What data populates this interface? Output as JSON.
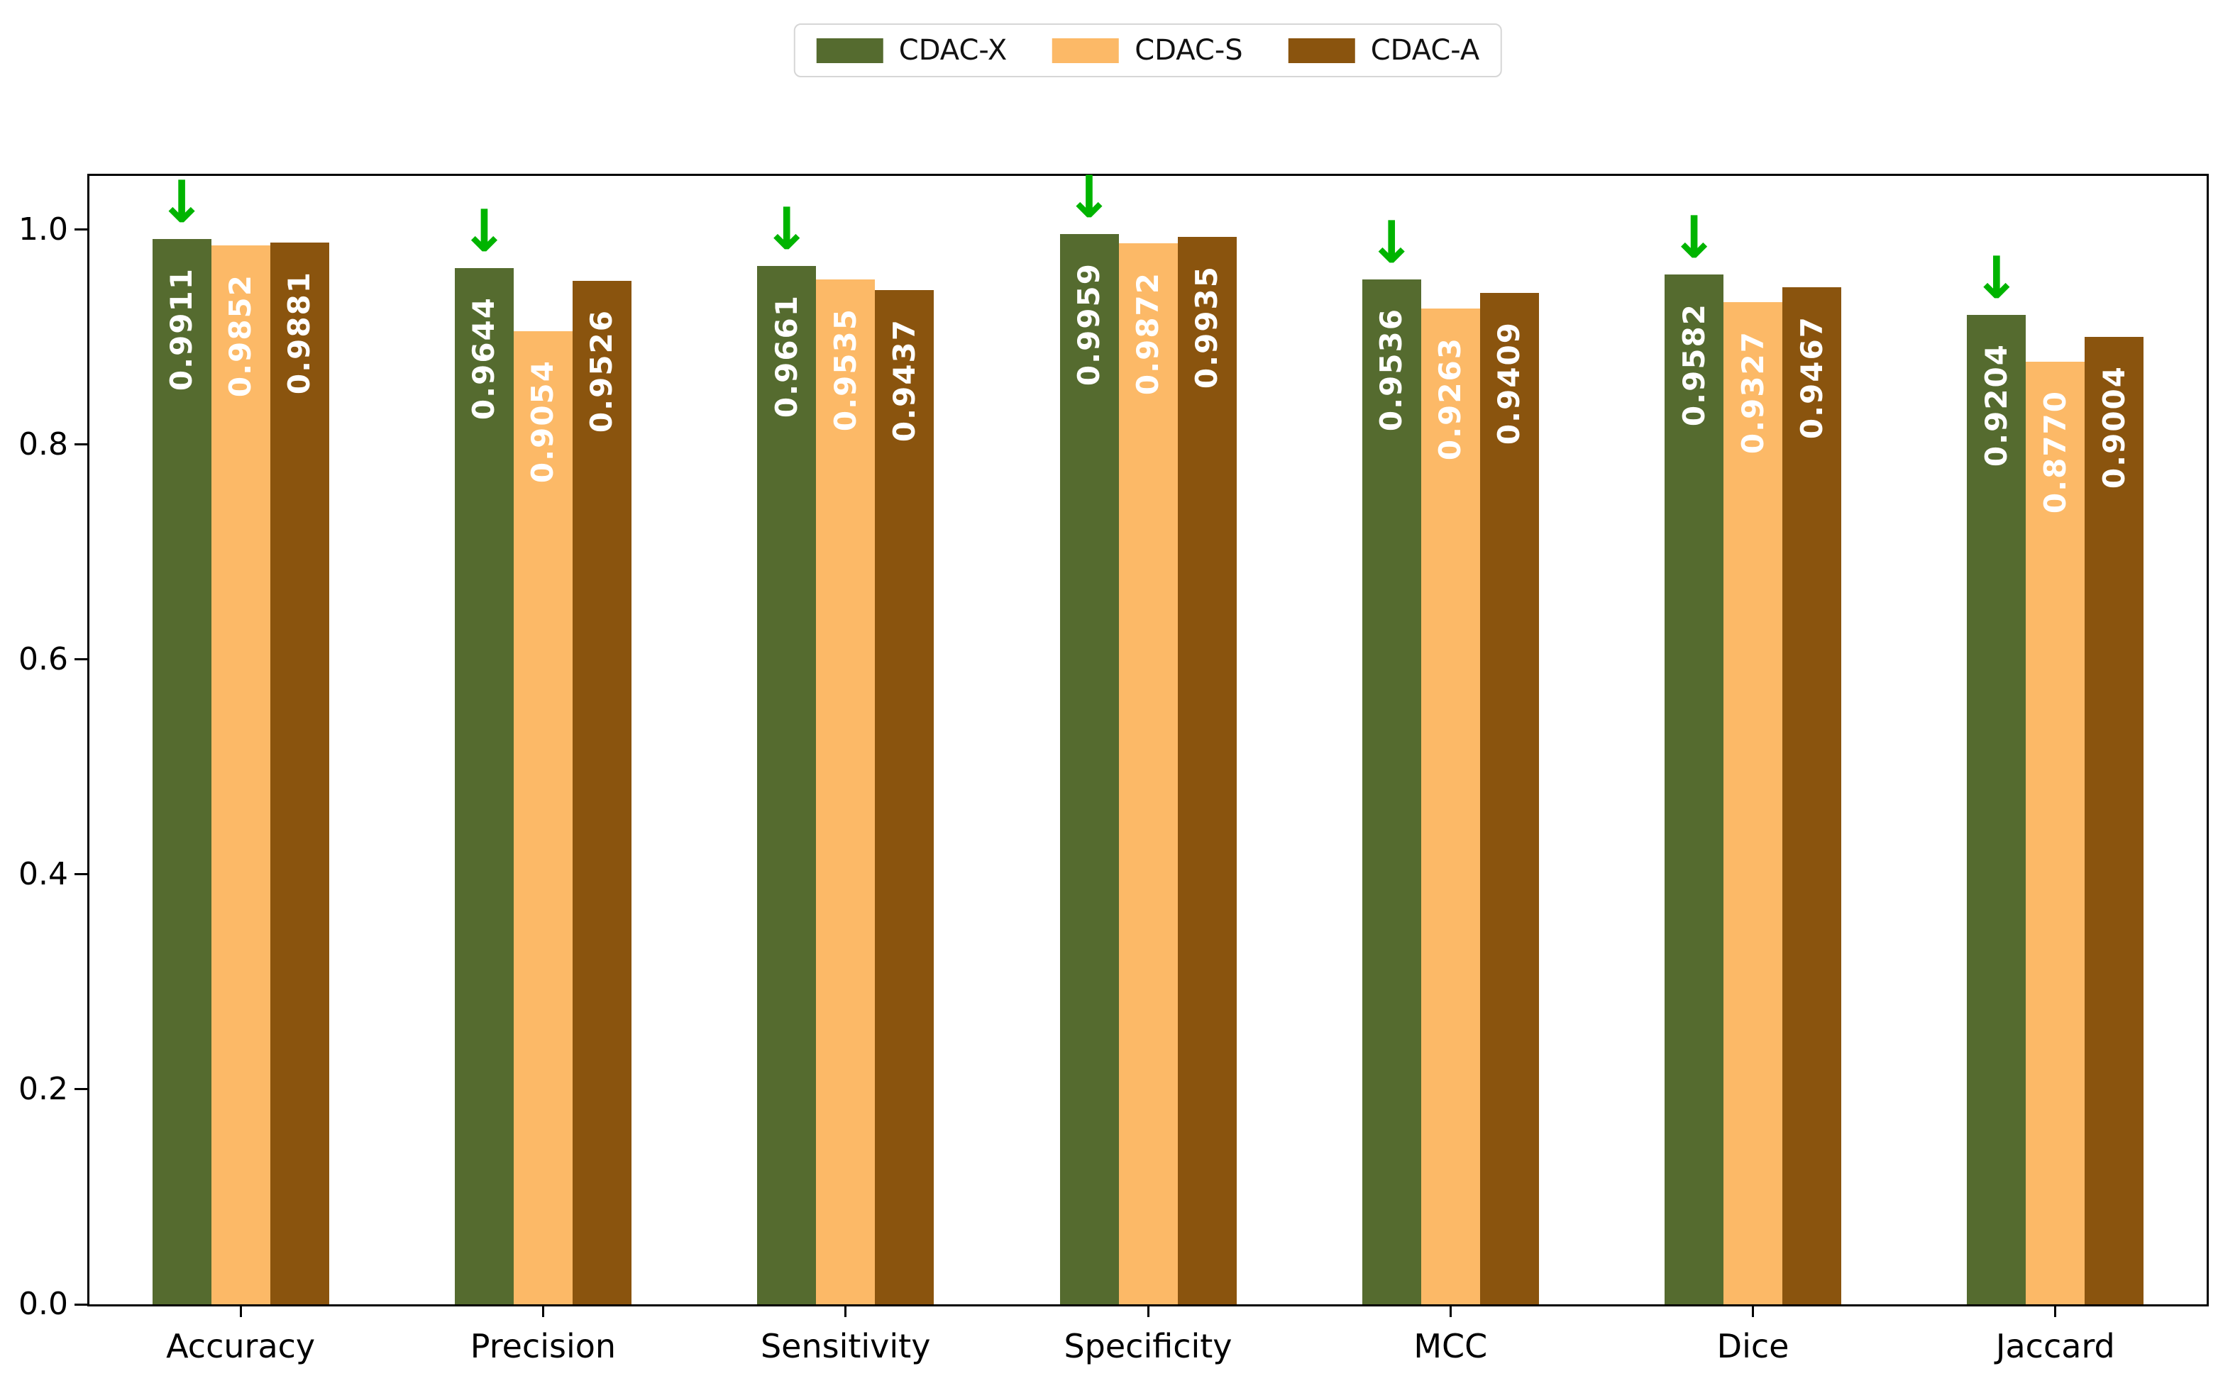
{
  "chart_data": {
    "type": "bar",
    "title": "",
    "xlabel": "",
    "ylabel": "",
    "categories": [
      "Accuracy",
      "Precision",
      "Sensitivity",
      "Specificity",
      "MCC",
      "Dice",
      "Jaccard"
    ],
    "series": [
      {
        "name": "CDAC-X",
        "color": "#556B2F",
        "values": [
          0.9911,
          0.9644,
          0.9661,
          0.9959,
          0.9536,
          0.9582,
          0.9204
        ],
        "labels": [
          "0.9911",
          "0.9644",
          "0.9661",
          "0.9959",
          "0.9536",
          "0.9582",
          "0.9204"
        ]
      },
      {
        "name": "CDAC-S",
        "color": "#FCB967",
        "values": [
          0.9852,
          0.9054,
          0.9535,
          0.9872,
          0.9263,
          0.9327,
          0.877
        ],
        "labels": [
          "0.9852",
          "0.9054",
          "0.9535",
          "0.9872",
          "0.9263",
          "0.9327",
          "0.8770"
        ]
      },
      {
        "name": "CDAC-A",
        "color": "#8A540E",
        "values": [
          0.9881,
          0.9526,
          0.9437,
          0.9935,
          0.9409,
          0.9467,
          0.9004
        ],
        "labels": [
          "0.9881",
          "0.9526",
          "0.9437",
          "0.9935",
          "0.9409",
          "0.9467",
          "0.9004"
        ]
      }
    ],
    "ylim": [
      0,
      1.05
    ],
    "yticks": [
      "0.0",
      "0.2",
      "0.4",
      "0.6",
      "0.8",
      "1.0"
    ],
    "grid": false,
    "legend_position": "upper-center-above-axes",
    "bar_label_color": "#FFFFFF",
    "bar_label_rotation_deg": 90,
    "annotations": {
      "arrow_glyph": "↓",
      "arrow_color": "#00B400",
      "arrow_marks_series": "CDAC-X",
      "arrow_on_every_group": true
    }
  }
}
